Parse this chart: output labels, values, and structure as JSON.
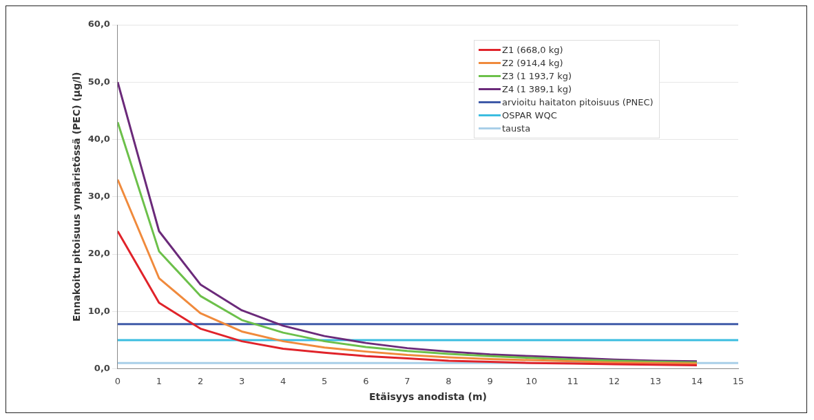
{
  "chart_data": {
    "type": "line",
    "xlabel": "Etäisyys anodista (m)",
    "ylabel": "Ennakoitu pitoisuus ympäristössä (PEC) (µg/l)",
    "x": [
      0,
      1,
      2,
      3,
      4,
      5,
      6,
      7,
      8,
      9,
      10,
      11,
      12,
      13,
      14
    ],
    "series": [
      {
        "name": "Z1 (668,0 kg)",
        "color": "#e0232a",
        "values": [
          24,
          11.5,
          7,
          4.8,
          3.5,
          2.8,
          2.2,
          1.8,
          1.4,
          1.2,
          1.0,
          0.9,
          0.8,
          0.7,
          0.6
        ]
      },
      {
        "name": "Z2 (914,4 kg)",
        "color": "#f08a3c",
        "values": [
          33,
          15.8,
          9.7,
          6.5,
          4.8,
          3.7,
          3,
          2.4,
          2,
          1.7,
          1.5,
          1.3,
          1.1,
          1.0,
          0.9
        ]
      },
      {
        "name": "Z3 (1 193,7 kg)",
        "color": "#6cc04a",
        "values": [
          43,
          20.5,
          12.7,
          8.5,
          6.3,
          4.8,
          3.8,
          3.1,
          2.6,
          2.2,
          1.9,
          1.6,
          1.4,
          1.2,
          1.1
        ]
      },
      {
        "name": "Z4 (1 389,1 kg)",
        "color": "#6b2a7a",
        "values": [
          50,
          24,
          14.7,
          10.2,
          7.5,
          5.7,
          4.5,
          3.6,
          3.0,
          2.5,
          2.2,
          1.9,
          1.6,
          1.4,
          1.3
        ]
      }
    ],
    "ref_lines": [
      {
        "axis": "y",
        "value": 7.8,
        "label": "arvioitu haitaton pitoisuus (PNEC)",
        "color": "#3f5aa8"
      },
      {
        "axis": "y",
        "value": 5.0,
        "label": "OSPAR WQC",
        "color": "#3bbde0"
      },
      {
        "axis": "y",
        "value": 1.0,
        "label": "tausta",
        "color": "#a9cfe8"
      }
    ],
    "xlim": [
      0,
      15
    ],
    "xticks": [
      0,
      1,
      2,
      3,
      4,
      5,
      6,
      7,
      8,
      9,
      10,
      11,
      12,
      13,
      14,
      15
    ],
    "ylim": [
      0,
      60
    ],
    "yticks": [
      {
        "value": 0,
        "label": "0,0"
      },
      {
        "value": 10,
        "label": "10,0"
      },
      {
        "value": 20,
        "label": "20,0"
      },
      {
        "value": 30,
        "label": "30,0"
      },
      {
        "value": 40,
        "label": "40,0"
      },
      {
        "value": 50,
        "label": "50,0"
      },
      {
        "value": 60,
        "label": "60,0"
      }
    ],
    "grid": "y",
    "legend": "top right",
    "marker": "none",
    "line_style": "solid"
  }
}
